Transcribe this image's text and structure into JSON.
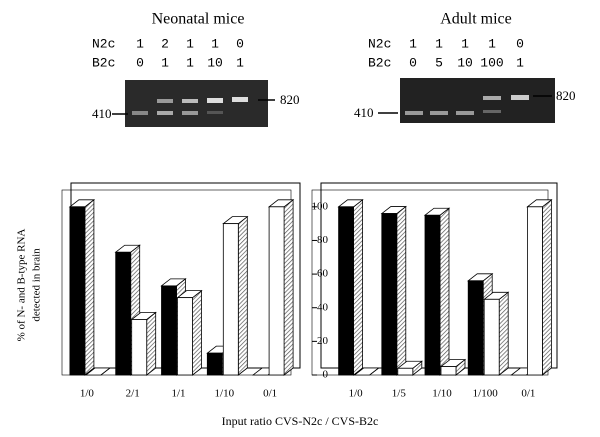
{
  "chart_data": [
    {
      "type": "bar3d",
      "title": "Neonatal mice",
      "ylabel": [
        "% of N- and B-type RNA",
        "detected in brain"
      ],
      "categories": [
        "1/0",
        "2/1",
        "1/1",
        "1/10",
        "0/1"
      ],
      "series": [
        {
          "color": "#000000",
          "values": [
            100,
            73,
            53,
            13,
            0
          ]
        },
        {
          "color": "#ffffff",
          "values": [
            0,
            33,
            46,
            90,
            100
          ]
        }
      ],
      "ylim": [
        0,
        110
      ]
    },
    {
      "type": "bar3d",
      "title": "Adult mice",
      "categories": [
        "1/0",
        "1/5",
        "1/10",
        "1/100",
        "0/1"
      ],
      "series": [
        {
          "color": "#000000",
          "values": [
            100,
            96,
            95,
            56,
            0
          ]
        },
        {
          "color": "#ffffff",
          "values": [
            0,
            4,
            5,
            45,
            100
          ]
        }
      ],
      "ylim": [
        0,
        110
      ],
      "yticks": [
        0,
        20,
        40,
        60,
        80,
        100
      ]
    }
  ],
  "xlabel": "Input ratio CVS-N2c / CVS-B2c",
  "gels": [
    {
      "rows": [
        {
          "label": "N2c",
          "values": [
            1,
            2,
            1,
            1,
            0
          ]
        },
        {
          "label": "B2c",
          "values": [
            0,
            1,
            1,
            10,
            1
          ]
        }
      ],
      "markers": [
        "410",
        "820"
      ]
    },
    {
      "rows": [
        {
          "label": "N2c",
          "values": [
            1,
            1,
            1,
            1,
            0
          ]
        },
        {
          "label": "B2c",
          "values": [
            0,
            5,
            10,
            100,
            1
          ]
        }
      ],
      "markers": [
        "410",
        "820"
      ]
    }
  ]
}
